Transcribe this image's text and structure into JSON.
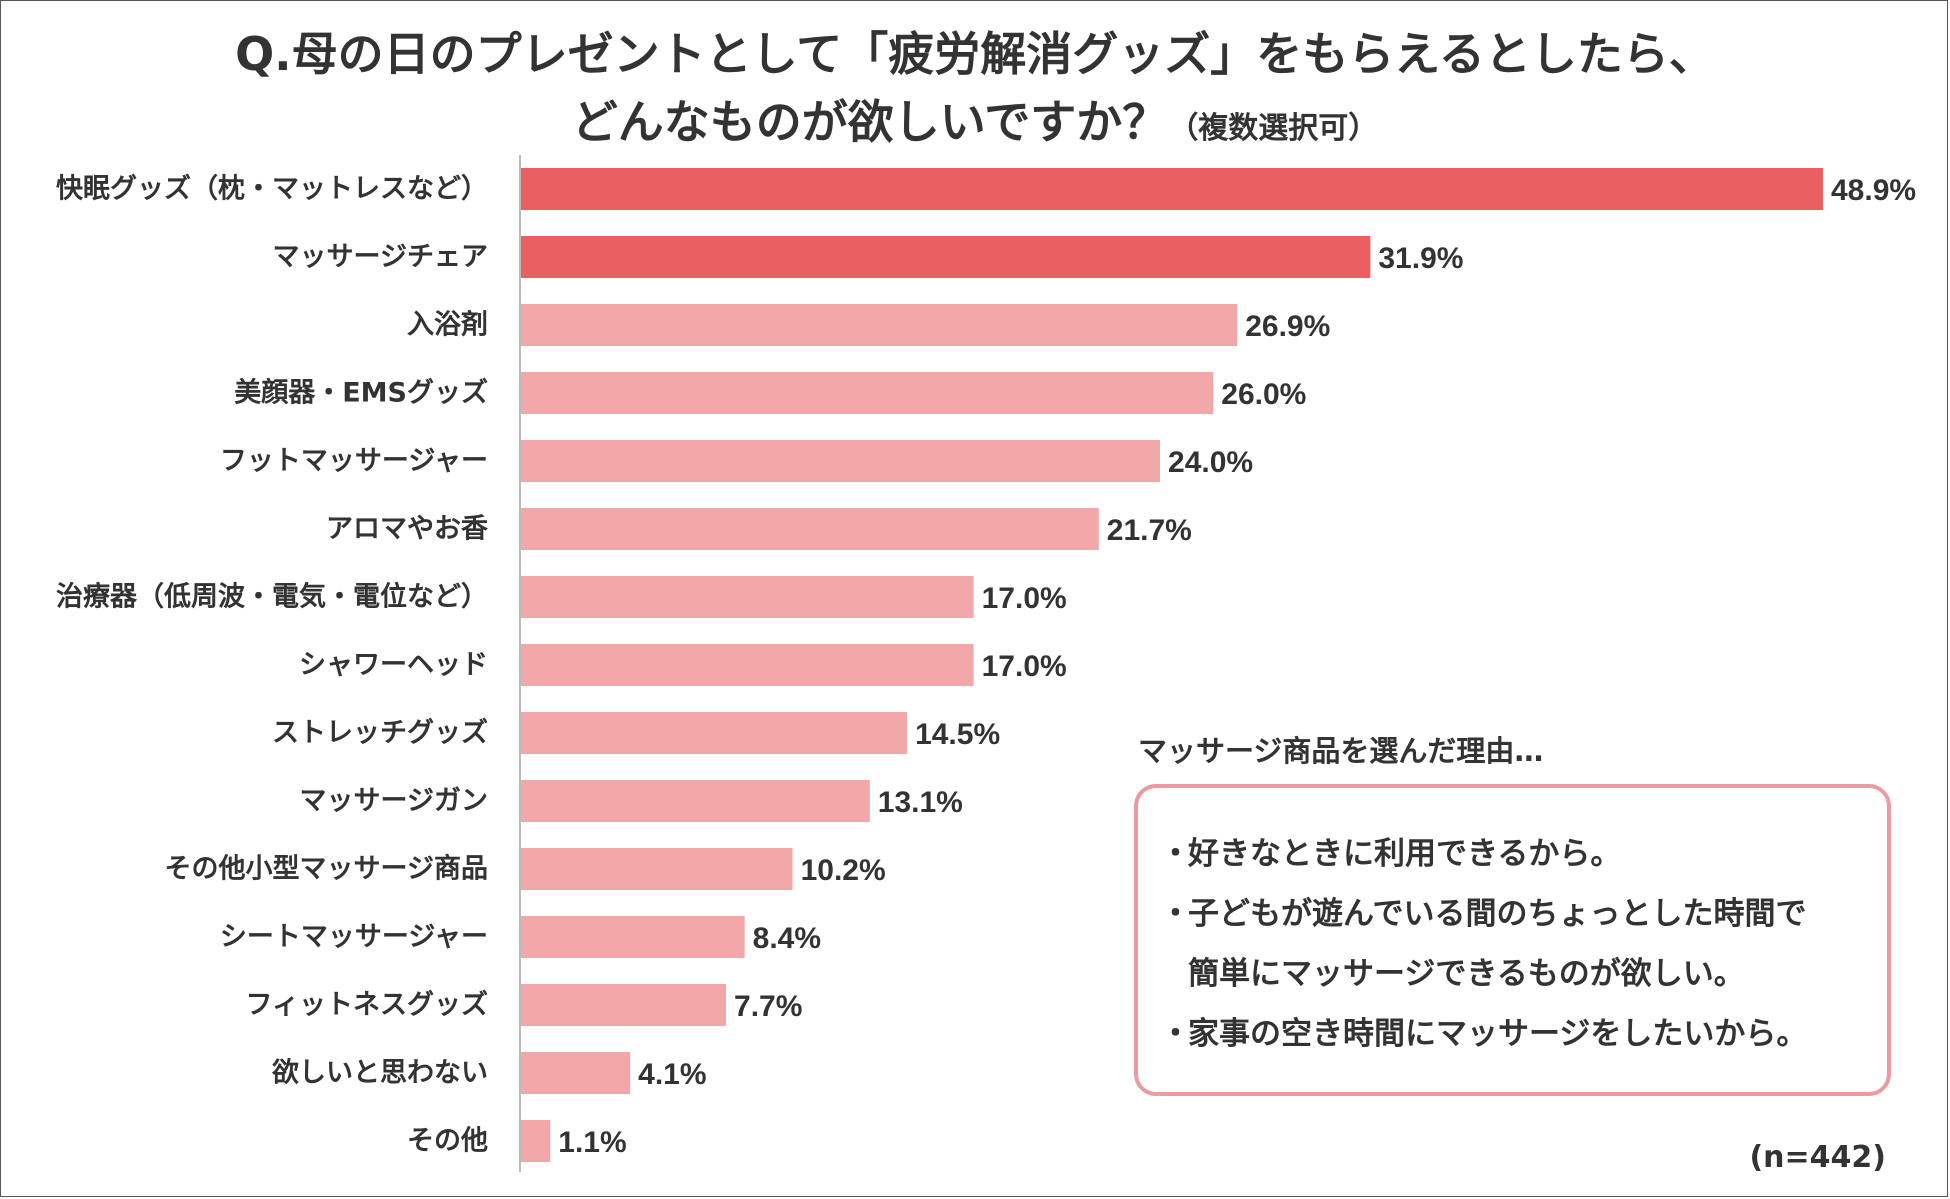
{
  "title": {
    "line1": "Q.母の日のプレゼントとして「疲労解消グッズ」をもらえるとしたら、",
    "line2": "どんなものが欲しいですか？",
    "note": "（複数選択可）"
  },
  "colors": {
    "highlight": "#ea6060",
    "normal": "#f2a7a9",
    "axis": "#bbbbbb",
    "text": "#333333",
    "box_border": "#eb9aa0"
  },
  "chart_data": {
    "type": "bar",
    "orientation": "horizontal",
    "title": "Q.母の日のプレゼントとして「疲労解消グッズ」をもらえるとしたら、どんなものが欲しいですか？（複数選択可）",
    "xlabel": "",
    "ylabel": "",
    "xlim": [
      0,
      48.9
    ],
    "unit": "%",
    "categories": [
      "快眠グッズ（枕・マットレスなど）",
      "マッサージチェア",
      "入浴剤",
      "美顔器・EMSグッズ",
      "フットマッサージャー",
      "アロマやお香",
      "治療器（低周波・電気・電位など）",
      "シャワーヘッド",
      "ストレッチグッズ",
      "マッサージガン",
      "その他小型マッサージ商品",
      "シートマッサージャー",
      "フィットネスグッズ",
      "欲しいと思わない",
      "その他"
    ],
    "values": [
      48.9,
      31.9,
      26.9,
      26.0,
      24.0,
      21.7,
      17.0,
      17.0,
      14.5,
      13.1,
      10.2,
      8.4,
      7.7,
      4.1,
      1.1
    ],
    "value_labels": [
      "48.9%",
      "31.9%",
      "26.9%",
      "26.0%",
      "24.0%",
      "21.7%",
      "17.0%",
      "17.0%",
      "14.5%",
      "13.1%",
      "10.2%",
      "8.4%",
      "7.7%",
      "4.1%",
      "1.1%"
    ],
    "highlighted": [
      true,
      true,
      false,
      false,
      false,
      false,
      false,
      false,
      false,
      false,
      false,
      false,
      false,
      false,
      false
    ],
    "grid": false,
    "sample_size": "(n=442)"
  },
  "reasons": {
    "title": "マッサージ商品を選んだ理由…",
    "bullet": "・",
    "items": [
      "好きなときに利用できるから。",
      "子どもが遊んでいる間のちょっとした時間で",
      "簡単にマッサージできるものが欲しい。",
      "家事の空き時間にマッサージをしたいから。"
    ]
  }
}
